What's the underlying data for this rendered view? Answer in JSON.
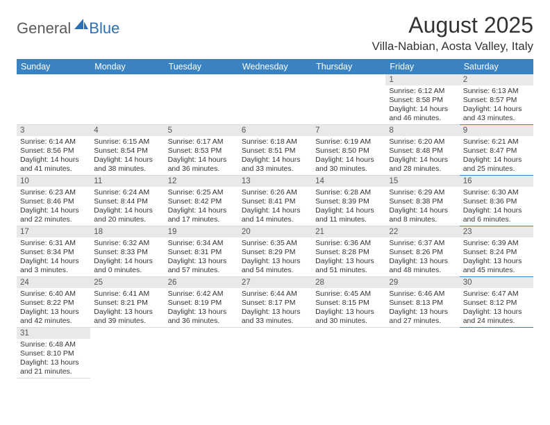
{
  "logo": {
    "general": "General",
    "blue": "Blue"
  },
  "title": "August 2025",
  "location": "Villa-Nabian, Aosta Valley, Italy",
  "colors": {
    "header_bg": "#3b83c0",
    "header_text": "#ffffff",
    "daynum_bg": "#e9e9e9",
    "saturday_rule": "#3b83c0",
    "rule": "#d9d9d9",
    "logo_gray": "#5a5a5a",
    "logo_blue": "#2c6fb5"
  },
  "typography": {
    "title_fontsize": 32,
    "location_fontsize": 17,
    "dayname_fontsize": 12.5,
    "daynum_fontsize": 11.5,
    "body_fontsize": 10.5
  },
  "daynames": [
    "Sunday",
    "Monday",
    "Tuesday",
    "Wednesday",
    "Thursday",
    "Friday",
    "Saturday"
  ],
  "weeks": [
    [
      null,
      null,
      null,
      null,
      null,
      {
        "n": "1",
        "sr": "Sunrise: 6:12 AM",
        "ss": "Sunset: 8:58 PM",
        "d1": "Daylight: 14 hours",
        "d2": "and 46 minutes."
      },
      {
        "n": "2",
        "sr": "Sunrise: 6:13 AM",
        "ss": "Sunset: 8:57 PM",
        "d1": "Daylight: 14 hours",
        "d2": "and 43 minutes."
      }
    ],
    [
      {
        "n": "3",
        "sr": "Sunrise: 6:14 AM",
        "ss": "Sunset: 8:56 PM",
        "d1": "Daylight: 14 hours",
        "d2": "and 41 minutes."
      },
      {
        "n": "4",
        "sr": "Sunrise: 6:15 AM",
        "ss": "Sunset: 8:54 PM",
        "d1": "Daylight: 14 hours",
        "d2": "and 38 minutes."
      },
      {
        "n": "5",
        "sr": "Sunrise: 6:17 AM",
        "ss": "Sunset: 8:53 PM",
        "d1": "Daylight: 14 hours",
        "d2": "and 36 minutes."
      },
      {
        "n": "6",
        "sr": "Sunrise: 6:18 AM",
        "ss": "Sunset: 8:51 PM",
        "d1": "Daylight: 14 hours",
        "d2": "and 33 minutes."
      },
      {
        "n": "7",
        "sr": "Sunrise: 6:19 AM",
        "ss": "Sunset: 8:50 PM",
        "d1": "Daylight: 14 hours",
        "d2": "and 30 minutes."
      },
      {
        "n": "8",
        "sr": "Sunrise: 6:20 AM",
        "ss": "Sunset: 8:48 PM",
        "d1": "Daylight: 14 hours",
        "d2": "and 28 minutes."
      },
      {
        "n": "9",
        "sr": "Sunrise: 6:21 AM",
        "ss": "Sunset: 8:47 PM",
        "d1": "Daylight: 14 hours",
        "d2": "and 25 minutes."
      }
    ],
    [
      {
        "n": "10",
        "sr": "Sunrise: 6:23 AM",
        "ss": "Sunset: 8:46 PM",
        "d1": "Daylight: 14 hours",
        "d2": "and 22 minutes."
      },
      {
        "n": "11",
        "sr": "Sunrise: 6:24 AM",
        "ss": "Sunset: 8:44 PM",
        "d1": "Daylight: 14 hours",
        "d2": "and 20 minutes."
      },
      {
        "n": "12",
        "sr": "Sunrise: 6:25 AM",
        "ss": "Sunset: 8:42 PM",
        "d1": "Daylight: 14 hours",
        "d2": "and 17 minutes."
      },
      {
        "n": "13",
        "sr": "Sunrise: 6:26 AM",
        "ss": "Sunset: 8:41 PM",
        "d1": "Daylight: 14 hours",
        "d2": "and 14 minutes."
      },
      {
        "n": "14",
        "sr": "Sunrise: 6:28 AM",
        "ss": "Sunset: 8:39 PM",
        "d1": "Daylight: 14 hours",
        "d2": "and 11 minutes."
      },
      {
        "n": "15",
        "sr": "Sunrise: 6:29 AM",
        "ss": "Sunset: 8:38 PM",
        "d1": "Daylight: 14 hours",
        "d2": "and 8 minutes."
      },
      {
        "n": "16",
        "sr": "Sunrise: 6:30 AM",
        "ss": "Sunset: 8:36 PM",
        "d1": "Daylight: 14 hours",
        "d2": "and 6 minutes."
      }
    ],
    [
      {
        "n": "17",
        "sr": "Sunrise: 6:31 AM",
        "ss": "Sunset: 8:34 PM",
        "d1": "Daylight: 14 hours",
        "d2": "and 3 minutes."
      },
      {
        "n": "18",
        "sr": "Sunrise: 6:32 AM",
        "ss": "Sunset: 8:33 PM",
        "d1": "Daylight: 14 hours",
        "d2": "and 0 minutes."
      },
      {
        "n": "19",
        "sr": "Sunrise: 6:34 AM",
        "ss": "Sunset: 8:31 PM",
        "d1": "Daylight: 13 hours",
        "d2": "and 57 minutes."
      },
      {
        "n": "20",
        "sr": "Sunrise: 6:35 AM",
        "ss": "Sunset: 8:29 PM",
        "d1": "Daylight: 13 hours",
        "d2": "and 54 minutes."
      },
      {
        "n": "21",
        "sr": "Sunrise: 6:36 AM",
        "ss": "Sunset: 8:28 PM",
        "d1": "Daylight: 13 hours",
        "d2": "and 51 minutes."
      },
      {
        "n": "22",
        "sr": "Sunrise: 6:37 AM",
        "ss": "Sunset: 8:26 PM",
        "d1": "Daylight: 13 hours",
        "d2": "and 48 minutes."
      },
      {
        "n": "23",
        "sr": "Sunrise: 6:39 AM",
        "ss": "Sunset: 8:24 PM",
        "d1": "Daylight: 13 hours",
        "d2": "and 45 minutes."
      }
    ],
    [
      {
        "n": "24",
        "sr": "Sunrise: 6:40 AM",
        "ss": "Sunset: 8:22 PM",
        "d1": "Daylight: 13 hours",
        "d2": "and 42 minutes."
      },
      {
        "n": "25",
        "sr": "Sunrise: 6:41 AM",
        "ss": "Sunset: 8:21 PM",
        "d1": "Daylight: 13 hours",
        "d2": "and 39 minutes."
      },
      {
        "n": "26",
        "sr": "Sunrise: 6:42 AM",
        "ss": "Sunset: 8:19 PM",
        "d1": "Daylight: 13 hours",
        "d2": "and 36 minutes."
      },
      {
        "n": "27",
        "sr": "Sunrise: 6:44 AM",
        "ss": "Sunset: 8:17 PM",
        "d1": "Daylight: 13 hours",
        "d2": "and 33 minutes."
      },
      {
        "n": "28",
        "sr": "Sunrise: 6:45 AM",
        "ss": "Sunset: 8:15 PM",
        "d1": "Daylight: 13 hours",
        "d2": "and 30 minutes."
      },
      {
        "n": "29",
        "sr": "Sunrise: 6:46 AM",
        "ss": "Sunset: 8:13 PM",
        "d1": "Daylight: 13 hours",
        "d2": "and 27 minutes."
      },
      {
        "n": "30",
        "sr": "Sunrise: 6:47 AM",
        "ss": "Sunset: 8:12 PM",
        "d1": "Daylight: 13 hours",
        "d2": "and 24 minutes."
      }
    ],
    [
      {
        "n": "31",
        "sr": "Sunrise: 6:48 AM",
        "ss": "Sunset: 8:10 PM",
        "d1": "Daylight: 13 hours",
        "d2": "and 21 minutes."
      },
      null,
      null,
      null,
      null,
      null,
      null
    ]
  ]
}
